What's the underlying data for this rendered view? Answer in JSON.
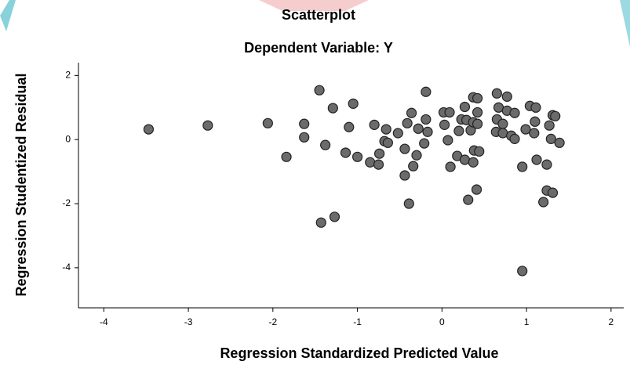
{
  "chart_data": {
    "type": "scatter",
    "title": "Scatterplot",
    "subtitle": "Dependent Variable: Y",
    "x_label": "Regression Standardized Predicted Value",
    "y_label": "Regression Studentized Residual",
    "xlim": [
      -4.3,
      2.15
    ],
    "ylim": [
      -5.25,
      2.4
    ],
    "xticks": [
      -4,
      -3,
      -2,
      -1,
      0,
      1,
      2
    ],
    "yticks": [
      -4,
      -2,
      0,
      2
    ],
    "color": "#6b6b6b",
    "grid": false,
    "series": [
      {
        "x": [
          -3.47,
          -2.77,
          -2.06,
          -1.63,
          -1.63,
          -1.84,
          -1.45,
          -1.29,
          -1.05,
          -1.1,
          -1.38,
          -1.14,
          -1.0,
          -1.43,
          -1.27,
          -0.85,
          -0.8,
          -0.74,
          -0.75,
          -0.68,
          -0.66,
          -0.64,
          -0.52,
          -0.44,
          -0.44,
          -0.41,
          -0.36,
          -0.34,
          -0.39,
          -0.3,
          -0.28,
          -0.21,
          -0.19,
          -0.17,
          -0.19,
          0.02,
          0.03,
          0.07,
          0.09,
          0.1,
          0.18,
          0.2,
          0.23,
          0.27,
          0.29,
          0.27,
          0.31,
          0.34,
          0.37,
          0.38,
          0.37,
          0.37,
          0.42,
          0.42,
          0.42,
          0.44,
          0.41,
          0.65,
          0.67,
          0.65,
          0.64,
          0.72,
          0.72,
          0.77,
          0.77,
          0.86,
          0.82,
          0.86,
          0.95,
          0.95,
          0.99,
          1.04,
          1.11,
          1.1,
          1.12,
          1.09,
          1.2,
          1.24,
          1.24,
          1.27,
          1.29,
          1.31,
          1.31,
          1.34,
          1.39
        ],
        "values": [
          0.32,
          0.44,
          0.51,
          0.49,
          0.07,
          -0.54,
          1.54,
          0.98,
          1.12,
          0.39,
          -0.17,
          -0.41,
          -0.54,
          -2.59,
          -2.41,
          -0.71,
          0.46,
          -0.44,
          -0.78,
          -0.05,
          0.32,
          -0.1,
          0.2,
          -0.29,
          -1.12,
          0.51,
          0.83,
          -0.83,
          -2.0,
          -0.49,
          0.34,
          -0.12,
          0.63,
          0.24,
          1.49,
          0.85,
          0.46,
          -0.02,
          0.85,
          -0.85,
          -0.51,
          0.27,
          0.63,
          1.02,
          0.61,
          -0.63,
          -1.88,
          0.29,
          -0.71,
          -0.34,
          0.54,
          1.32,
          0.85,
          1.29,
          0.49,
          -0.37,
          -1.56,
          1.44,
          1.0,
          0.63,
          0.24,
          0.49,
          0.2,
          1.34,
          0.9,
          0.83,
          0.12,
          0.02,
          -0.85,
          -4.1,
          0.32,
          1.05,
          1.0,
          0.56,
          -0.63,
          0.2,
          -1.95,
          -1.59,
          -0.78,
          0.44,
          0.02,
          -1.66,
          0.76,
          0.73,
          -0.1
        ]
      }
    ]
  }
}
